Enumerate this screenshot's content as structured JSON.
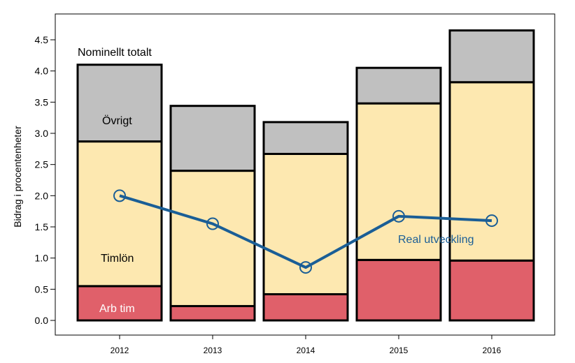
{
  "chart_data": {
    "type": "bar",
    "stacked": true,
    "categories": [
      "2012",
      "2013",
      "2014",
      "2015",
      "2016"
    ],
    "series": [
      {
        "name": "Arb tim",
        "color": "#e0606a",
        "values": [
          0.55,
          0.23,
          0.42,
          0.97,
          0.96
        ]
      },
      {
        "name": "Timlön",
        "color": "#fde8b0",
        "values": [
          2.32,
          2.17,
          2.25,
          2.51,
          2.86
        ]
      },
      {
        "name": "Övrigt",
        "color": "#c0c0c0",
        "values": [
          1.23,
          1.04,
          0.51,
          0.57,
          0.83
        ]
      }
    ],
    "line_series": {
      "name": "Real utveckling",
      "color": "#1a5e96",
      "values": [
        2.0,
        1.55,
        0.85,
        1.67,
        1.6
      ]
    },
    "ylabel": "Bidrag i procentenheter",
    "ylim": [
      -0.2,
      4.7
    ],
    "yticks": [
      0.0,
      0.5,
      1.0,
      1.5,
      2.0,
      2.5,
      3.0,
      3.5,
      4.0,
      4.5
    ],
    "ytick_labels": [
      "0.0",
      "0.5",
      "1.0",
      "1.5",
      "2.0",
      "2.5",
      "3.0",
      "3.5",
      "4.0",
      "4.5"
    ],
    "annotations": {
      "total": "Nominellt totalt",
      "ovrigt": "Övrigt",
      "timlon": "Timlön",
      "arbtim": "Arb tim",
      "real": "Real utveckling"
    },
    "legend": "none",
    "grid": false
  }
}
